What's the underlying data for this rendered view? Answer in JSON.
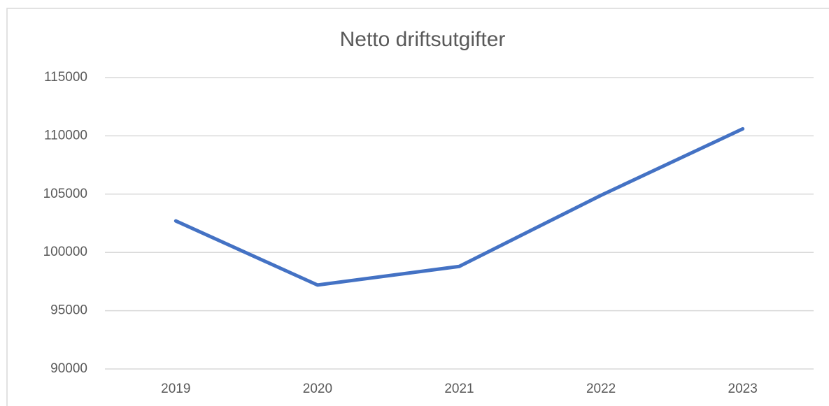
{
  "chart_data": {
    "type": "line",
    "title": "Netto driftsutgifter",
    "categories": [
      "2019",
      "2020",
      "2021",
      "2022",
      "2023"
    ],
    "series": [
      {
        "name": "Netto driftsutgifter",
        "color": "#4472c4",
        "values": [
          102700,
          97200,
          98800,
          104900,
          110600
        ]
      }
    ],
    "ylim": [
      90000,
      115000
    ],
    "yticks": [
      90000,
      95000,
      100000,
      105000,
      110000,
      115000
    ],
    "grid": true
  }
}
